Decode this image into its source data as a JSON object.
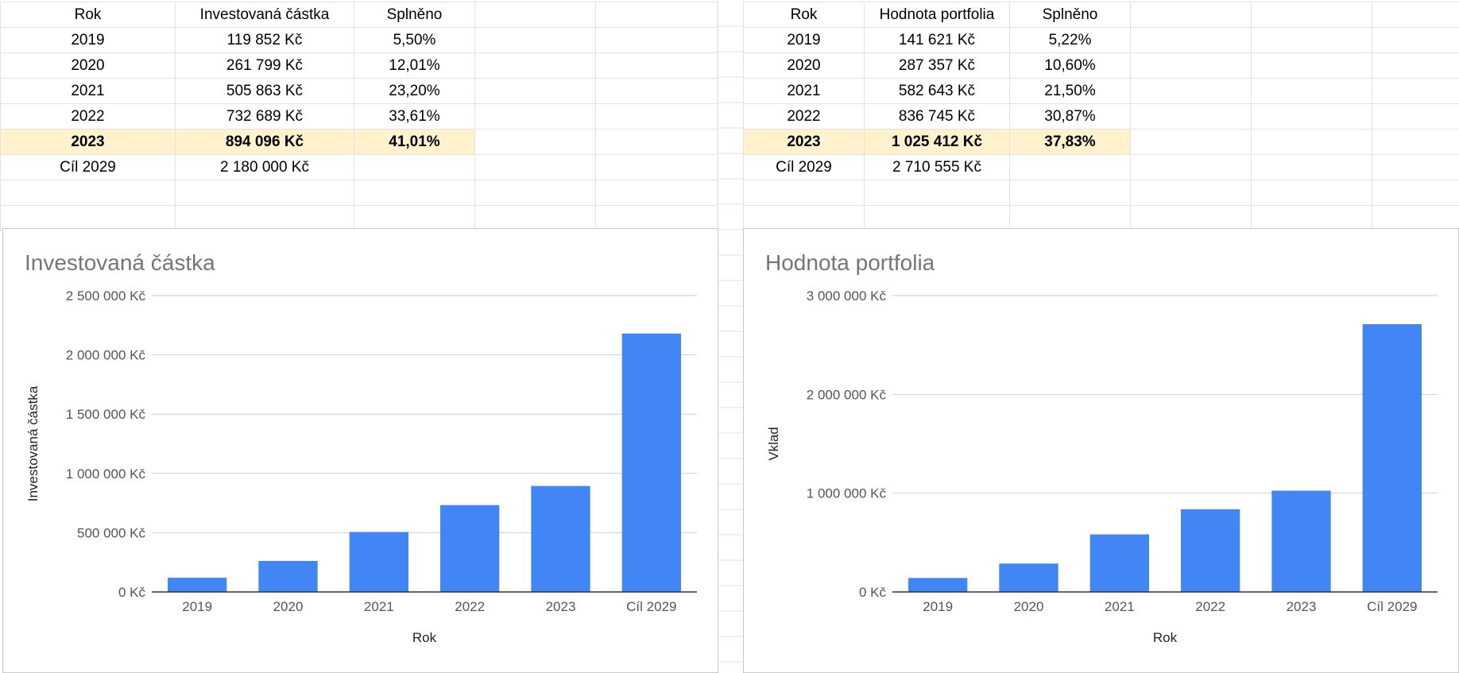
{
  "left_table": {
    "headers": [
      "Rok",
      "Investovaná částka",
      "Splněno"
    ],
    "rows": [
      [
        "2019",
        "119 852 Kč",
        "5,50%"
      ],
      [
        "2020",
        "261 799 Kč",
        "12,01%"
      ],
      [
        "2021",
        "505 863 Kč",
        "23,20%"
      ],
      [
        "2022",
        "732 689 Kč",
        "33,61%"
      ],
      [
        "2023",
        "894 096 Kč",
        "41,01%"
      ],
      [
        "Cíl 2029",
        "2 180 000 Kč",
        ""
      ]
    ]
  },
  "right_table": {
    "headers": [
      "Rok",
      "Hodnota portfolia",
      "Splněno"
    ],
    "rows": [
      [
        "2019",
        "141 621 Kč",
        "5,22%"
      ],
      [
        "2020",
        "287 357 Kč",
        "10,60%"
      ],
      [
        "2021",
        "582 643 Kč",
        "21,50%"
      ],
      [
        "2022",
        "836 745 Kč",
        "30,87%"
      ],
      [
        "2023",
        "1 025 412 Kč",
        "37,83%"
      ],
      [
        "Cíl 2029",
        "2 710 555 Kč",
        ""
      ]
    ]
  },
  "highlight_color": "#fff2cc",
  "chart_data": [
    {
      "type": "bar",
      "title": "Investovaná částka",
      "xlabel": "Rok",
      "ylabel": "Investovaná částka",
      "categories": [
        "2019",
        "2020",
        "2021",
        "2022",
        "2023",
        "Cíl 2029"
      ],
      "values": [
        119852,
        261799,
        505863,
        732689,
        894096,
        2180000
      ],
      "ylim": [
        0,
        2500000
      ],
      "yticks": [
        0,
        500000,
        1000000,
        1500000,
        2000000,
        2500000
      ],
      "ytick_labels": [
        "0 Kč",
        "500 000 Kč",
        "1 000 000 Kč",
        "1 500 000 Kč",
        "2 000 000 Kč",
        "2 500 000 Kč"
      ],
      "color": "#4285f4",
      "grid": true,
      "legend": "none"
    },
    {
      "type": "bar",
      "title": "Hodnota portfolia",
      "xlabel": "Rok",
      "ylabel": "Vklad",
      "categories": [
        "2019",
        "2020",
        "2021",
        "2022",
        "2023",
        "Cíl 2029"
      ],
      "values": [
        141621,
        287357,
        582643,
        836745,
        1025412,
        2710555
      ],
      "ylim": [
        0,
        3000000
      ],
      "yticks": [
        0,
        1000000,
        2000000,
        3000000
      ],
      "ytick_labels": [
        "0 Kč",
        "1 000 000 Kč",
        "2 000 000 Kč",
        "3 000 000 Kč"
      ],
      "color": "#4285f4",
      "grid": true,
      "legend": "none"
    }
  ]
}
